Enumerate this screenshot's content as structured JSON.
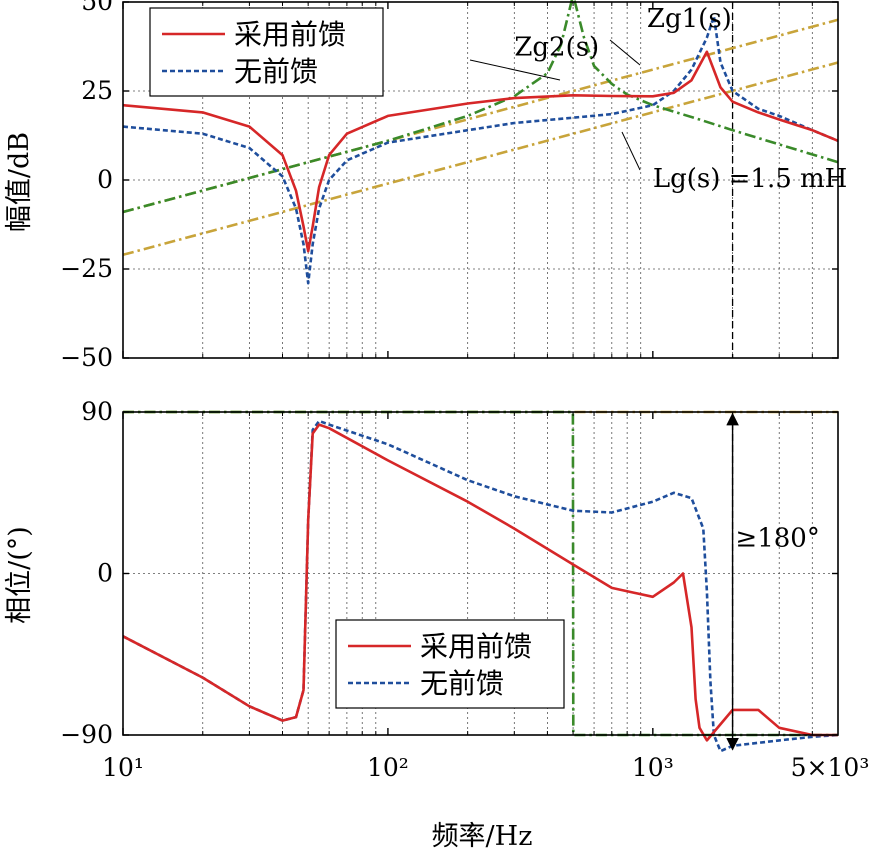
{
  "chart_data": [
    {
      "type": "line",
      "panel": "magnitude",
      "xscale": "log",
      "xlim": [
        10,
        5000
      ],
      "ylim": [
        -50,
        50
      ],
      "ylabel": "幅值/dB",
      "yticks": [
        -50,
        -25,
        0,
        25,
        50
      ],
      "grid": true,
      "legend_position": "top-left",
      "series": [
        {
          "name": "采用前馈",
          "color": "#d62728",
          "style": "solid",
          "x": [
            10,
            20,
            30,
            40,
            45,
            48,
            50,
            52,
            55,
            60,
            70,
            100,
            200,
            300,
            500,
            700,
            1000,
            1200,
            1400,
            1600,
            1800,
            2000,
            2500,
            3000,
            4000,
            5000
          ],
          "y": [
            21,
            19,
            15,
            7,
            -3,
            -13,
            -20,
            -13,
            -2,
            7,
            13,
            18,
            21.5,
            23,
            23.8,
            23.6,
            23.5,
            24.5,
            28,
            36,
            26,
            22,
            19,
            17,
            14,
            11
          ]
        },
        {
          "name": "无前馈",
          "color": "#1f4e9c",
          "style": "dashed",
          "x": [
            10,
            20,
            30,
            40,
            45,
            48,
            50,
            52,
            55,
            60,
            70,
            100,
            200,
            300,
            500,
            700,
            1000,
            1200,
            1400,
            1600,
            1700,
            1800,
            2000,
            2500,
            3000,
            4000,
            5000
          ],
          "y": [
            15,
            13,
            9,
            1,
            -8,
            -18,
            -29,
            -18,
            -8,
            0,
            5.5,
            10.5,
            14,
            16,
            17.5,
            18.5,
            21,
            25,
            31,
            40,
            46,
            33,
            25,
            20,
            18,
            14,
            11
          ]
        },
        {
          "name": "Zg2(s)",
          "color": "#3a8a2a",
          "style": "dashdot",
          "x": [
            10,
            50,
            100,
            200,
            300,
            400,
            450,
            500,
            550,
            600,
            700,
            800,
            1000,
            1500,
            2000,
            3000,
            5000
          ],
          "y": [
            -9,
            5,
            11,
            18,
            23.5,
            30,
            38,
            52,
            40,
            32,
            27,
            24,
            21,
            17,
            14,
            10,
            5
          ]
        },
        {
          "name": "Zg1(s)",
          "color": "#c8a43a",
          "style": "dashdot",
          "x": [
            10,
            5000
          ],
          "y": [
            -9,
            45
          ]
        },
        {
          "name": "Lg(s)=1.5 mH",
          "color": "#c8a43a",
          "style": "dashdot",
          "x": [
            10,
            5000
          ],
          "y": [
            -21,
            33
          ]
        }
      ],
      "annotations": [
        {
          "text": "Zg2(s)",
          "x": 300,
          "y": 35
        },
        {
          "text": "Zg1(s)",
          "x": 950,
          "y": 43
        },
        {
          "text": "Lg(s) =1.5 mH",
          "x": 1000,
          "y": -2
        }
      ],
      "vertical_marker_x": 2000
    },
    {
      "type": "line",
      "panel": "phase",
      "xscale": "log",
      "xlim": [
        10,
        5000
      ],
      "ylim": [
        -90,
        90
      ],
      "ylabel": "相位/(°)",
      "yticks": [
        -90,
        0,
        90
      ],
      "xlabel": "频率/Hz",
      "xtick_labels": [
        "10¹",
        "10²",
        "10³",
        "5×10³"
      ],
      "grid": true,
      "legend_position": "bottom-center",
      "series": [
        {
          "name": "采用前馈",
          "color": "#d62728",
          "style": "solid",
          "x": [
            10,
            20,
            30,
            40,
            45,
            48,
            50,
            52,
            55,
            60,
            100,
            200,
            300,
            500,
            700,
            1000,
            1200,
            1300,
            1400,
            1450,
            1500,
            1600,
            2000,
            2500,
            3000,
            4000,
            5000
          ],
          "y": [
            -35,
            -58,
            -74,
            -82,
            -80,
            -65,
            30,
            78,
            83,
            81,
            63,
            40,
            25,
            5,
            -8,
            -13,
            -5,
            0,
            -30,
            -70,
            -86,
            -93,
            -76,
            -76,
            -86,
            -90,
            -90
          ]
        },
        {
          "name": "无前馈",
          "color": "#1f4e9c",
          "style": "dashed",
          "x": [
            10,
            20,
            30,
            40,
            45,
            48,
            50,
            52,
            55,
            60,
            100,
            200,
            300,
            500,
            700,
            1000,
            1200,
            1400,
            1550,
            1600,
            1650,
            1700,
            1800,
            2000,
            3000,
            4000,
            5000
          ],
          "y": [
            -35,
            -58,
            -74,
            -82,
            -80,
            -65,
            30,
            80,
            85,
            83,
            72,
            52,
            43,
            35,
            34,
            40,
            45,
            42,
            25,
            -10,
            -60,
            -90,
            -99,
            -96,
            -93,
            -91,
            -90
          ]
        },
        {
          "name": "Zg2(s)",
          "color": "#3a8a2a",
          "style": "dashdot",
          "x": [
            10,
            499,
            501,
            5000
          ],
          "y": [
            90,
            90,
            -90,
            -90
          ]
        },
        {
          "name": "Zg1(s)",
          "color": "#c8a43a",
          "style": "dashdot",
          "x": [
            10,
            5000
          ],
          "y": [
            90,
            90
          ]
        }
      ],
      "annotations": [
        {
          "text": "≥180°",
          "x": 2050,
          "y": 15
        }
      ],
      "vertical_marker_x": 2000
    }
  ]
}
